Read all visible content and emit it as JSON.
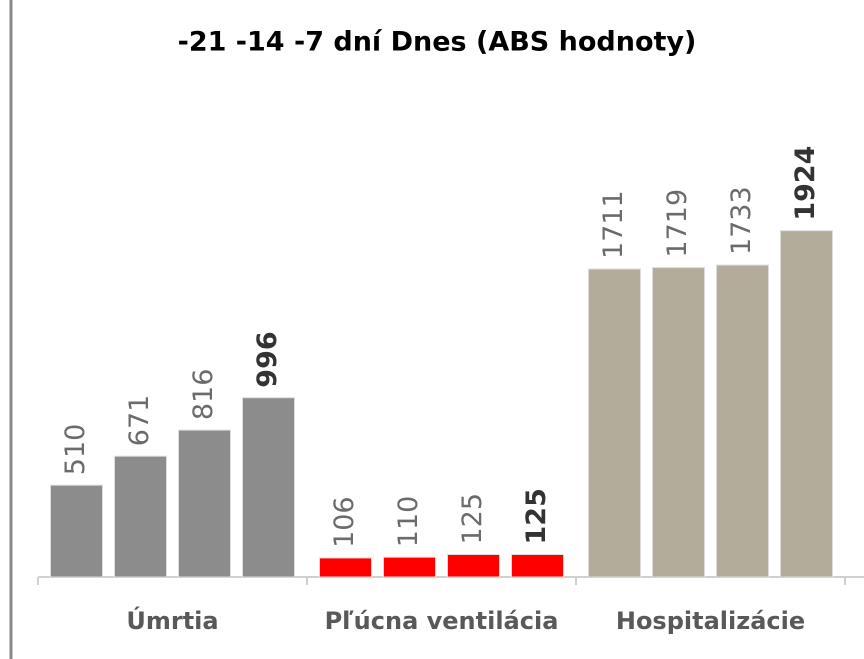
{
  "chart_data": {
    "type": "bar",
    "title": "-21 -14 -7 dní Dnes (ABS hodnoty)",
    "categories": [
      "Úmrtia",
      "Pľúcna ventilácia",
      "Hospitalizácie"
    ],
    "colors": [
      "#8c8c8c",
      "#ff0000",
      "#b3ac9a"
    ],
    "series": [
      {
        "values": [
          510,
          106,
          1711
        ]
      },
      {
        "values": [
          671,
          110,
          1719
        ]
      },
      {
        "values": [
          816,
          125,
          1733
        ]
      },
      {
        "values": [
          996,
          125,
          1924
        ]
      }
    ],
    "ylim": [
      0,
      2100
    ]
  }
}
